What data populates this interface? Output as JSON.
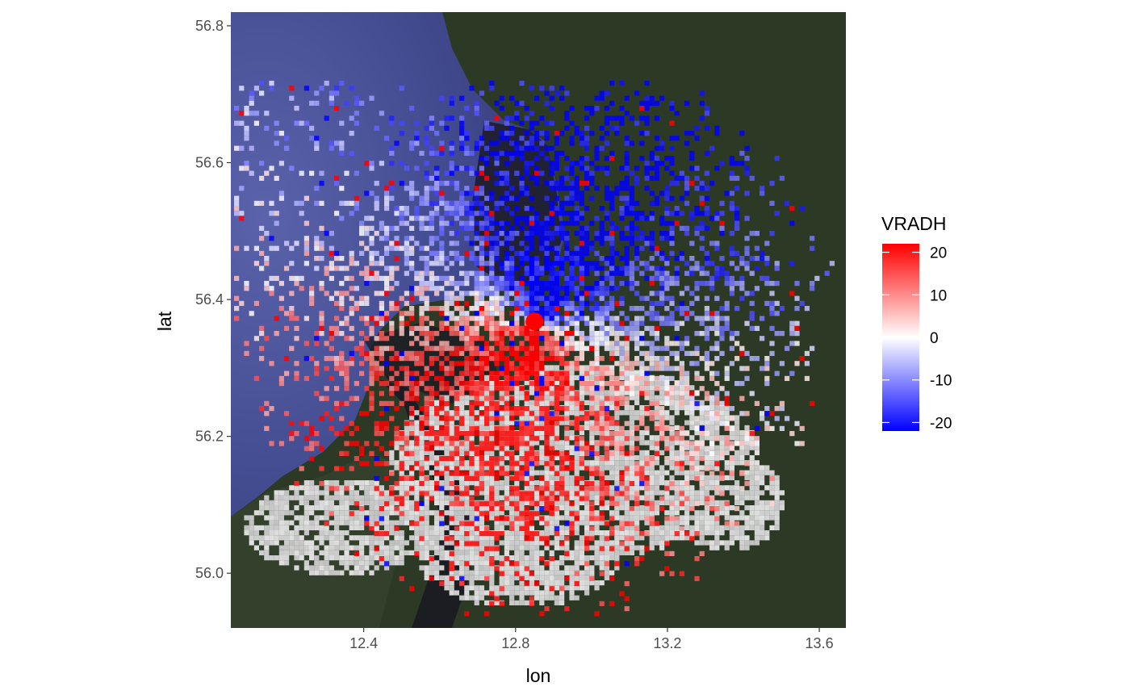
{
  "chart_data": {
    "type": "heatmap",
    "title": "",
    "xlabel": "lon",
    "ylabel": "lat",
    "xlim": [
      12.05,
      13.67
    ],
    "ylim": [
      55.92,
      56.82
    ],
    "x_ticks": [
      {
        "value": 12.4,
        "label": "12.4"
      },
      {
        "value": 12.8,
        "label": "12.8"
      },
      {
        "value": 13.2,
        "label": "13.2"
      },
      {
        "value": 13.6,
        "label": "13.6"
      }
    ],
    "y_ticks": [
      {
        "value": 56.0,
        "label": "56.0"
      },
      {
        "value": 56.2,
        "label": "56.2"
      },
      {
        "value": 56.4,
        "label": "56.4"
      },
      {
        "value": 56.6,
        "label": "56.6"
      },
      {
        "value": 56.8,
        "label": "56.8"
      }
    ],
    "radar_site": {
      "lon": 12.85,
      "lat": 56.368,
      "color": "#ff0000"
    },
    "basemap": "satellite",
    "legend": {
      "title": "VRADH",
      "placement": "right",
      "min": -22,
      "max": 22,
      "breaks": [
        {
          "value": 20,
          "label": "20"
        },
        {
          "value": 10,
          "label": "10"
        },
        {
          "value": 0,
          "label": "0"
        },
        {
          "value": -10,
          "label": "-10"
        },
        {
          "value": -20,
          "label": "-20"
        }
      ],
      "low_color": "#0000ff",
      "mid_color": "#ffffff",
      "high_color": "#ff0000"
    },
    "value_range": [
      -20,
      20
    ],
    "colors": {
      "sea": "#4a549a",
      "land": "#2c3a25",
      "dark_water": "#1b1b24",
      "clutter": "#d6d6d6"
    }
  }
}
